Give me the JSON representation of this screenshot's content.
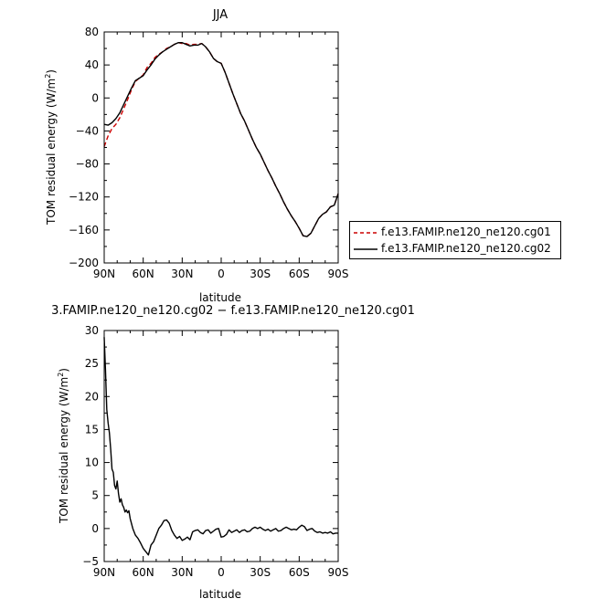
{
  "chart_data": [
    {
      "type": "line",
      "title": "JJA",
      "xlabel": "latitude",
      "ylabel": "TOM residual energy (W/m²)",
      "ylabel_text": "TOM residual energy (W/m",
      "ylabel_sup": "2",
      "ylabel_close": ")",
      "xlim": [
        90,
        -90
      ],
      "ylim": [
        -200,
        80
      ],
      "xticks": [
        90,
        60,
        30,
        0,
        -30,
        -60,
        -90
      ],
      "xtick_labels": [
        "90N",
        "60N",
        "30N",
        "0",
        "30S",
        "60S",
        "90S"
      ],
      "yticks": [
        80,
        40,
        0,
        -40,
        -80,
        -120,
        -160,
        -200
      ],
      "ytick_labels": [
        "80",
        "40",
        "0",
        "−40",
        "−80",
        "−120",
        "−160",
        "−200"
      ],
      "legend_position": "right",
      "series": [
        {
          "name": "f.e13.FAMIP.ne120_ne120.cg01",
          "color": "#cc0000",
          "dash": "dashed",
          "x": [
            90,
            87,
            84,
            81,
            78,
            75,
            72,
            69,
            66,
            63,
            60,
            57,
            54,
            51,
            48,
            45,
            42,
            39,
            36,
            33,
            30,
            27,
            24,
            21,
            18,
            15,
            12,
            9,
            6,
            3,
            0,
            -3,
            -6,
            -9,
            -12,
            -15,
            -18,
            -21,
            -24,
            -27,
            -30,
            -33,
            -36,
            -39,
            -42,
            -45,
            -48,
            -51,
            -54,
            -57,
            -60,
            -63,
            -66,
            -69,
            -72,
            -75,
            -78,
            -81,
            -84,
            -87,
            -90
          ],
          "y": [
            -59,
            -46,
            -37,
            -32,
            -24,
            -13,
            -2,
            10,
            20,
            24,
            28,
            37,
            42,
            49,
            53,
            56,
            60,
            62,
            65,
            67,
            66,
            66,
            64,
            65,
            65,
            66,
            62,
            56,
            48,
            44,
            42,
            31,
            18,
            5,
            -7,
            -19,
            -28,
            -39,
            -50,
            -60,
            -68,
            -78,
            -88,
            -97,
            -107,
            -116,
            -126,
            -135,
            -143,
            -150,
            -158,
            -167,
            -168,
            -164,
            -155,
            -146,
            -141,
            -138,
            -132,
            -130,
            -116
          ]
        },
        {
          "name": "f.e13.FAMIP.ne120_ne120.cg02",
          "color": "#000000",
          "dash": "solid",
          "x": [
            90,
            87,
            84,
            81,
            78,
            75,
            72,
            69,
            66,
            63,
            60,
            57,
            54,
            51,
            48,
            45,
            42,
            39,
            36,
            33,
            30,
            27,
            24,
            21,
            18,
            15,
            12,
            9,
            6,
            3,
            0,
            -3,
            -6,
            -9,
            -12,
            -15,
            -18,
            -21,
            -24,
            -27,
            -30,
            -33,
            -36,
            -39,
            -42,
            -45,
            -48,
            -51,
            -54,
            -57,
            -60,
            -63,
            -66,
            -69,
            -72,
            -75,
            -78,
            -81,
            -84,
            -87,
            -90
          ],
          "y": [
            -32,
            -33,
            -30,
            -25,
            -18,
            -8,
            2,
            12,
            21,
            24,
            27,
            34,
            40,
            47,
            52,
            56,
            59,
            62,
            65,
            67,
            67,
            65,
            63,
            64,
            64,
            66,
            62,
            56,
            48,
            44,
            42,
            31,
            18,
            5,
            -7,
            -19,
            -28,
            -39,
            -50,
            -60,
            -68,
            -78,
            -88,
            -97,
            -107,
            -116,
            -126,
            -135,
            -143,
            -150,
            -158,
            -167,
            -168,
            -164,
            -155,
            -146,
            -141,
            -138,
            -132,
            -130,
            -116
          ]
        }
      ]
    },
    {
      "type": "line",
      "title": "3.FAMIP.ne120_ne120.cg02 − f.e13.FAMIP.ne120_ne120.cg01",
      "xlabel": "latitude",
      "ylabel": "TOM residual energy (W/m²)",
      "ylabel_text": "TOM residual energy (W/m",
      "ylabel_sup": "2",
      "ylabel_close": ")",
      "xlim": [
        90,
        -90
      ],
      "ylim": [
        -5,
        30
      ],
      "xticks": [
        90,
        60,
        30,
        0,
        -30,
        -60,
        -90
      ],
      "xtick_labels": [
        "90N",
        "60N",
        "30N",
        "0",
        "30S",
        "60S",
        "90S"
      ],
      "yticks": [
        30,
        25,
        20,
        15,
        10,
        5,
        0,
        -5
      ],
      "ytick_labels": [
        "30",
        "25",
        "20",
        "15",
        "10",
        "5",
        "0",
        "−5"
      ],
      "series": [
        {
          "color": "#000000",
          "dash": "solid",
          "x": [
            90,
            89,
            88,
            87,
            86,
            85,
            84,
            83,
            82,
            81,
            80,
            79,
            78,
            77,
            76,
            75,
            74,
            73,
            72,
            71,
            70,
            68,
            66,
            64,
            62,
            60,
            58,
            56,
            54,
            52,
            50,
            48,
            46,
            44,
            42,
            40,
            38,
            36,
            34,
            32,
            30,
            28,
            26,
            24,
            22,
            20,
            18,
            16,
            14,
            12,
            10,
            8,
            6,
            4,
            2,
            0,
            -2,
            -4,
            -6,
            -8,
            -10,
            -12,
            -14,
            -16,
            -18,
            -20,
            -22,
            -24,
            -26,
            -28,
            -30,
            -32,
            -34,
            -36,
            -38,
            -40,
            -42,
            -44,
            -46,
            -48,
            -50,
            -52,
            -54,
            -56,
            -58,
            -60,
            -62,
            -64,
            -66,
            -68,
            -70,
            -72,
            -74,
            -76,
            -78,
            -80,
            -82,
            -84,
            -86,
            -88,
            -90
          ],
          "y": [
            29,
            24,
            18,
            16,
            14.5,
            12,
            9,
            8.5,
            6.5,
            6,
            7.2,
            5.3,
            4,
            4.5,
            3.6,
            3.2,
            2.5,
            2.8,
            2.4,
            2.7,
            1.5,
            0,
            -1,
            -1.5,
            -2.2,
            -3,
            -3.5,
            -4,
            -2.5,
            -2,
            -1,
            0,
            0.5,
            1.2,
            1.3,
            0.8,
            -0.3,
            -1,
            -1.5,
            -1.2,
            -1.8,
            -1.6,
            -1.3,
            -1.7,
            -0.5,
            -0.3,
            -0.2,
            -0.6,
            -0.8,
            -0.3,
            -0.2,
            -0.7,
            -0.4,
            -0.1,
            0,
            -1.3,
            -1.2,
            -0.9,
            -0.2,
            -0.6,
            -0.4,
            -0.2,
            -0.6,
            -0.3,
            -0.2,
            -0.5,
            -0.4,
            0,
            0.2,
            0,
            0.2,
            -0.1,
            -0.3,
            -0.1,
            -0.4,
            -0.2,
            0,
            -0.4,
            -0.3,
            0,
            0.2,
            0,
            -0.2,
            -0.1,
            -0.2,
            0.2,
            0.5,
            0.3,
            -0.3,
            -0.1,
            0,
            -0.4,
            -0.6,
            -0.5,
            -0.7,
            -0.6,
            -0.7,
            -0.5,
            -0.8,
            -0.7,
            -0.7
          ]
        }
      ]
    }
  ]
}
